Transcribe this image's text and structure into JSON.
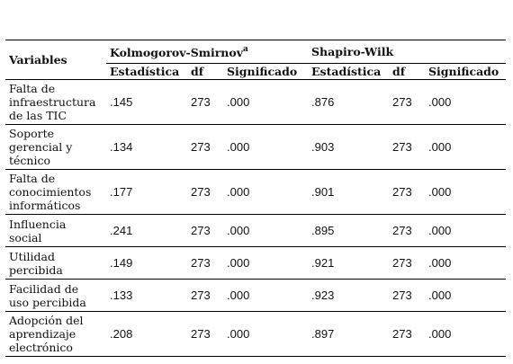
{
  "table": {
    "headers": {
      "variables": "Variables",
      "ks_group": "Kolmogorov-Smirnov",
      "ks_superscript": "a",
      "sw_group": "Shapiro-Wilk",
      "columns": [
        "Estadística",
        "df",
        "Significado",
        "Estadística",
        "df",
        "Significado"
      ]
    },
    "rows": [
      {
        "label": [
          "Falta de",
          "infraestructura",
          "de las TIC"
        ],
        "ks_stat": ".145",
        "ks_df": "273",
        "ks_sig": ".000",
        "sw_stat": ".876",
        "sw_df": "273",
        "sw_sig": ".000"
      },
      {
        "label": [
          "Soporte",
          "gerencial y",
          "técnico"
        ],
        "ks_stat": ".134",
        "ks_df": "273",
        "ks_sig": ".000",
        "sw_stat": ".903",
        "sw_df": "273",
        "sw_sig": ".000"
      },
      {
        "label": [
          "Falta de",
          "conocimientos",
          "informáticos"
        ],
        "ks_stat": ".177",
        "ks_df": "273",
        "ks_sig": ".000",
        "sw_stat": ".901",
        "sw_df": "273",
        "sw_sig": ".000"
      },
      {
        "label": [
          "Influencia",
          "social"
        ],
        "ks_stat": ".241",
        "ks_df": "273",
        "ks_sig": ".000",
        "sw_stat": ".895",
        "sw_df": "273",
        "sw_sig": ".000"
      },
      {
        "label": [
          "Utilidad",
          "percibida"
        ],
        "ks_stat": ".149",
        "ks_df": "273",
        "ks_sig": ".000",
        "sw_stat": ".921",
        "sw_df": "273",
        "sw_sig": ".000"
      },
      {
        "label": [
          "Facilidad de",
          "uso percibida"
        ],
        "ks_stat": ".133",
        "ks_df": "273",
        "ks_sig": ".000",
        "sw_stat": ".923",
        "sw_df": "273",
        "sw_sig": ".000"
      },
      {
        "label": [
          "Adopción del",
          "aprendizaje",
          "electrónico"
        ],
        "ks_stat": ".208",
        "ks_df": "273",
        "ks_sig": ".000",
        "sw_stat": ".897",
        "sw_df": "273",
        "sw_sig": ".000"
      }
    ]
  }
}
